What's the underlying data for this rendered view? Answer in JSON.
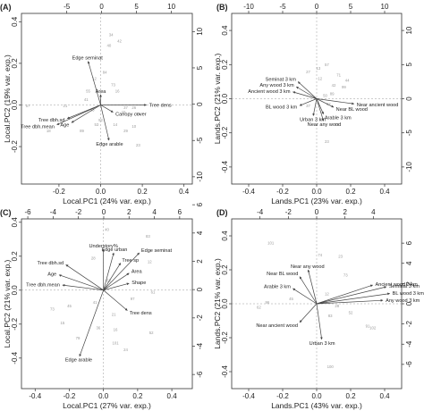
{
  "chart_data": [
    {
      "type": "biplot",
      "panel": "(A)",
      "xlabel": "Local.PC1 (24% var. exp.)",
      "ylabel": "Local.PC2 (19% var. exp.)",
      "bottom_ticks": [
        "-0.2",
        "0.0",
        "0.2",
        "0.4"
      ],
      "left_ticks": [
        "-0.2",
        "0.0",
        "0.2",
        "0.4"
      ],
      "top_ticks": [
        "-5",
        "0",
        "5",
        "10"
      ],
      "right_ticks": [
        "-10",
        "-5",
        "0",
        "5",
        "10"
      ],
      "xlim": [
        -0.38,
        0.44
      ],
      "ylim": [
        -0.38,
        0.44
      ],
      "top_lim": [
        -11.5,
        13.0
      ],
      "right_lim": [
        -11.0,
        12.5
      ],
      "loadings": [
        {
          "label": "Edge seminat",
          "x": -0.06,
          "y": 0.21
        },
        {
          "label": "Area",
          "x": 0.0,
          "y": 0.05
        },
        {
          "label": "Tree dens",
          "x": 0.22,
          "y": 0.0
        },
        {
          "label": "Canopy cover",
          "x": 0.06,
          "y": -0.035
        },
        {
          "label": "Tree dbh.sd",
          "x": -0.16,
          "y": -0.065
        },
        {
          "label": "Age",
          "x": -0.14,
          "y": -0.085
        },
        {
          "label": "Tree dbh.mean",
          "x": -0.21,
          "y": -0.095
        },
        {
          "label": "Edge arable",
          "x": 0.04,
          "y": -0.17
        }
      ],
      "sites": [
        {
          "label": "34",
          "x": 0.05,
          "y": 0.33
        },
        {
          "label": "40",
          "x": 0.04,
          "y": 0.28
        },
        {
          "label": "42",
          "x": 0.09,
          "y": 0.3
        },
        {
          "label": "12",
          "x": -0.03,
          "y": 0.12
        },
        {
          "label": "84",
          "x": 0.02,
          "y": 0.15
        },
        {
          "label": "73",
          "x": 0.06,
          "y": 0.09
        },
        {
          "label": "55",
          "x": -0.06,
          "y": 0.06
        },
        {
          "label": "16",
          "x": 0.08,
          "y": 0.06
        },
        {
          "label": "21",
          "x": -0.17,
          "y": -0.01
        },
        {
          "label": "33",
          "x": -0.04,
          "y": -0.03
        },
        {
          "label": "37",
          "x": 0.12,
          "y": -0.02
        },
        {
          "label": "26",
          "x": 0.16,
          "y": -0.02
        },
        {
          "label": "99",
          "x": 0.18,
          "y": -0.05
        },
        {
          "label": "57",
          "x": -0.35,
          "y": -0.01
        },
        {
          "label": "18",
          "x": -0.25,
          "y": -0.13
        },
        {
          "label": "92",
          "x": 0.0,
          "y": -0.08
        },
        {
          "label": "14",
          "x": 0.07,
          "y": -0.1
        },
        {
          "label": "10",
          "x": 0.16,
          "y": -0.11
        },
        {
          "label": "29",
          "x": 0.12,
          "y": -0.13
        },
        {
          "label": "15",
          "x": 0.11,
          "y": -0.04
        },
        {
          "label": "89",
          "x": -0.09,
          "y": -0.13
        },
        {
          "label": "53",
          "x": -0.02,
          "y": -0.1
        },
        {
          "label": "23",
          "x": 0.18,
          "y": -0.2
        },
        {
          "label": "41",
          "x": -0.07,
          "y": 0.02
        }
      ]
    },
    {
      "type": "biplot",
      "panel": "(B)",
      "xlabel": "Lands.PC1 (23% var. exp.)",
      "ylabel": "Lands.PC2 (21% var. exp.)",
      "bottom_ticks": [
        "-0.4",
        "-0.2",
        "0.0",
        "0.2",
        "0.4"
      ],
      "left_ticks": [
        "-0.4",
        "-0.2",
        "0.0",
        "0.2",
        "0.4"
      ],
      "top_ticks": [
        "-10",
        "-5",
        "0",
        "5",
        "10"
      ],
      "right_ticks": [
        "-10",
        "-5",
        "0",
        "5",
        "10"
      ],
      "xlim": [
        -0.5,
        0.5
      ],
      "ylim": [
        -0.5,
        0.5
      ],
      "top_lim": [
        -12.5,
        12.5
      ],
      "right_lim": [
        -12.5,
        12.5
      ],
      "loadings": [
        {
          "label": "Seminat 3 km",
          "x": -0.11,
          "y": 0.1
        },
        {
          "label": "Any wood 3 km",
          "x": -0.12,
          "y": 0.07
        },
        {
          "label": "Ancient wood 3 km",
          "x": -0.14,
          "y": 0.04
        },
        {
          "label": "Near ancient wood",
          "x": 0.22,
          "y": -0.03
        },
        {
          "label": "BL wood 3 km",
          "x": -0.1,
          "y": -0.04
        },
        {
          "label": "Near BL wood",
          "x": 0.1,
          "y": -0.05
        },
        {
          "label": "Arable 3 km",
          "x": 0.04,
          "y": -0.09
        },
        {
          "label": "Urban 3 km",
          "x": -0.02,
          "y": -0.1
        },
        {
          "label": "Near any wood",
          "x": 0.04,
          "y": -0.13
        }
      ],
      "sites": [
        {
          "label": "13",
          "x": 0.01,
          "y": 0.17
        },
        {
          "label": "57",
          "x": 0.06,
          "y": 0.19
        },
        {
          "label": "71",
          "x": 0.13,
          "y": 0.13
        },
        {
          "label": "27",
          "x": -0.05,
          "y": 0.15
        },
        {
          "label": "42",
          "x": 0.1,
          "y": 0.07
        },
        {
          "label": "99",
          "x": 0.16,
          "y": 0.06
        },
        {
          "label": "50",
          "x": 0.05,
          "y": 0.01
        },
        {
          "label": "62",
          "x": 0.07,
          "y": -0.04
        },
        {
          "label": "37",
          "x": -0.05,
          "y": -0.05
        },
        {
          "label": "78",
          "x": 0.12,
          "y": -0.16
        },
        {
          "label": "23",
          "x": 0.06,
          "y": -0.26
        },
        {
          "label": "44",
          "x": 0.18,
          "y": 0.1
        },
        {
          "label": "12",
          "x": 0.02,
          "y": 0.11
        },
        {
          "label": "89",
          "x": 0.09,
          "y": 0.02
        }
      ]
    },
    {
      "type": "biplot",
      "panel": "(C)",
      "xlabel": "Local.PC1 (27% var. exp.)",
      "ylabel": "Local.PC2 (21% var. exp.)",
      "bottom_ticks": [
        "-0.4",
        "-0.2",
        "0.0",
        "0.2",
        "0.4"
      ],
      "left_ticks": [
        "-0.4",
        "-0.2",
        "0.0",
        "0.2",
        "0.4"
      ],
      "top_ticks": [
        "-6",
        "-4",
        "-2",
        "0",
        "2",
        "4",
        "6"
      ],
      "right_ticks": [
        "-6",
        "-4",
        "-2",
        "0",
        "2",
        "4",
        "6"
      ],
      "xlim": [
        -0.48,
        0.52
      ],
      "ylim": [
        -0.58,
        0.42
      ],
      "top_lim": [
        -6.5,
        7.0
      ],
      "right_lim": [
        -7.0,
        5.0
      ],
      "loadings": [
        {
          "label": "Understory%",
          "x": 0.0,
          "y": 0.24
        },
        {
          "label": "Edge urban",
          "x": 0.06,
          "y": 0.22
        },
        {
          "label": "Edge seminat",
          "x": 0.21,
          "y": 0.22
        },
        {
          "label": "Tree sp",
          "x": 0.1,
          "y": 0.16
        },
        {
          "label": "Area",
          "x": 0.15,
          "y": 0.1
        },
        {
          "label": "Shape",
          "x": 0.15,
          "y": 0.04
        },
        {
          "label": "Tree dbh.sd",
          "x": -0.22,
          "y": 0.15
        },
        {
          "label": "Age",
          "x": -0.26,
          "y": 0.09
        },
        {
          "label": "Tree dbh.mean",
          "x": -0.24,
          "y": 0.03
        },
        {
          "label": "Tree dens",
          "x": 0.14,
          "y": -0.12
        },
        {
          "label": "Edge arable",
          "x": -0.14,
          "y": -0.39
        }
      ],
      "sites": [
        {
          "label": "83",
          "x": 0.26,
          "y": 0.31
        },
        {
          "label": "40",
          "x": 0.02,
          "y": 0.35
        },
        {
          "label": "12",
          "x": 0.27,
          "y": 0.16
        },
        {
          "label": "28",
          "x": -0.06,
          "y": 0.18
        },
        {
          "label": "97",
          "x": 0.17,
          "y": -0.06
        },
        {
          "label": "61",
          "x": 0.29,
          "y": -0.02
        },
        {
          "label": "45",
          "x": -0.2,
          "y": -0.1
        },
        {
          "label": "73",
          "x": -0.3,
          "y": -0.12
        },
        {
          "label": "15",
          "x": -0.24,
          "y": -0.2
        },
        {
          "label": "79",
          "x": -0.15,
          "y": -0.29
        },
        {
          "label": "36",
          "x": -0.03,
          "y": -0.23
        },
        {
          "label": "16",
          "x": 0.07,
          "y": -0.24
        },
        {
          "label": "101",
          "x": 0.07,
          "y": -0.32
        },
        {
          "label": "24",
          "x": 0.13,
          "y": -0.36
        },
        {
          "label": "52",
          "x": 0.28,
          "y": -0.26
        },
        {
          "label": "63",
          "x": 0.03,
          "y": 0.05
        },
        {
          "label": "41",
          "x": -0.05,
          "y": -0.08
        },
        {
          "label": "21",
          "x": 0.06,
          "y": -0.15
        }
      ]
    },
    {
      "type": "biplot",
      "panel": "(D)",
      "xlabel": "Lands.PC1 (43% var. exp.)",
      "ylabel": "Lands.PC2 (21% var. exp.)",
      "bottom_ticks": [
        "-0.4",
        "-0.2",
        "0.0",
        "0.2",
        "0.4"
      ],
      "left_ticks": [
        "-0.4",
        "-0.2",
        "0.0",
        "0.2",
        "0.4"
      ],
      "top_ticks": [
        "-4",
        "-2",
        "0",
        "2",
        "4"
      ],
      "right_ticks": [
        "-6",
        "-4",
        "-2",
        "0",
        "2",
        "4",
        "6"
      ],
      "xlim": [
        -0.5,
        0.5
      ],
      "ylim": [
        -0.5,
        0.5
      ],
      "top_lim": [
        -6.0,
        6.0
      ],
      "right_lim": [
        -8.4,
        8.4
      ],
      "loadings": [
        {
          "label": "Near any wood",
          "x": -0.05,
          "y": 0.2
        },
        {
          "label": "Near BL wood",
          "x": -0.1,
          "y": 0.16
        },
        {
          "label": "Arable 3 km",
          "x": -0.14,
          "y": 0.09
        },
        {
          "label": "Ancient wood 3 km",
          "x": 0.33,
          "y": 0.11
        },
        {
          "label": "Seminat 3 km",
          "x": 0.41,
          "y": 0.1
        },
        {
          "label": "BL wood 3 km",
          "x": 0.43,
          "y": 0.06
        },
        {
          "label": "Any wood 3 km",
          "x": 0.39,
          "y": 0.02
        },
        {
          "label": "Near ancient wood",
          "x": -0.1,
          "y": -0.11
        },
        {
          "label": "Urban 3 km",
          "x": 0.03,
          "y": -0.21
        }
      ],
      "sites": [
        {
          "label": "101",
          "x": -0.27,
          "y": 0.35
        },
        {
          "label": "74",
          "x": 0.02,
          "y": 0.28
        },
        {
          "label": "23",
          "x": 0.14,
          "y": 0.27
        },
        {
          "label": "73",
          "x": 0.17,
          "y": 0.16
        },
        {
          "label": "96",
          "x": -0.29,
          "y": 0.0
        },
        {
          "label": "62",
          "x": -0.34,
          "y": -0.03
        },
        {
          "label": "45",
          "x": -0.15,
          "y": 0.02
        },
        {
          "label": "28",
          "x": 0.12,
          "y": -0.02
        },
        {
          "label": "91",
          "x": 0.3,
          "y": -0.14
        },
        {
          "label": "102",
          "x": 0.33,
          "y": -0.15
        },
        {
          "label": "52",
          "x": 0.2,
          "y": -0.06
        },
        {
          "label": "12",
          "x": 0.06,
          "y": 0.05
        },
        {
          "label": "83",
          "x": 0.08,
          "y": -0.08
        },
        {
          "label": "100",
          "x": 0.08,
          "y": -0.38
        }
      ]
    }
  ]
}
